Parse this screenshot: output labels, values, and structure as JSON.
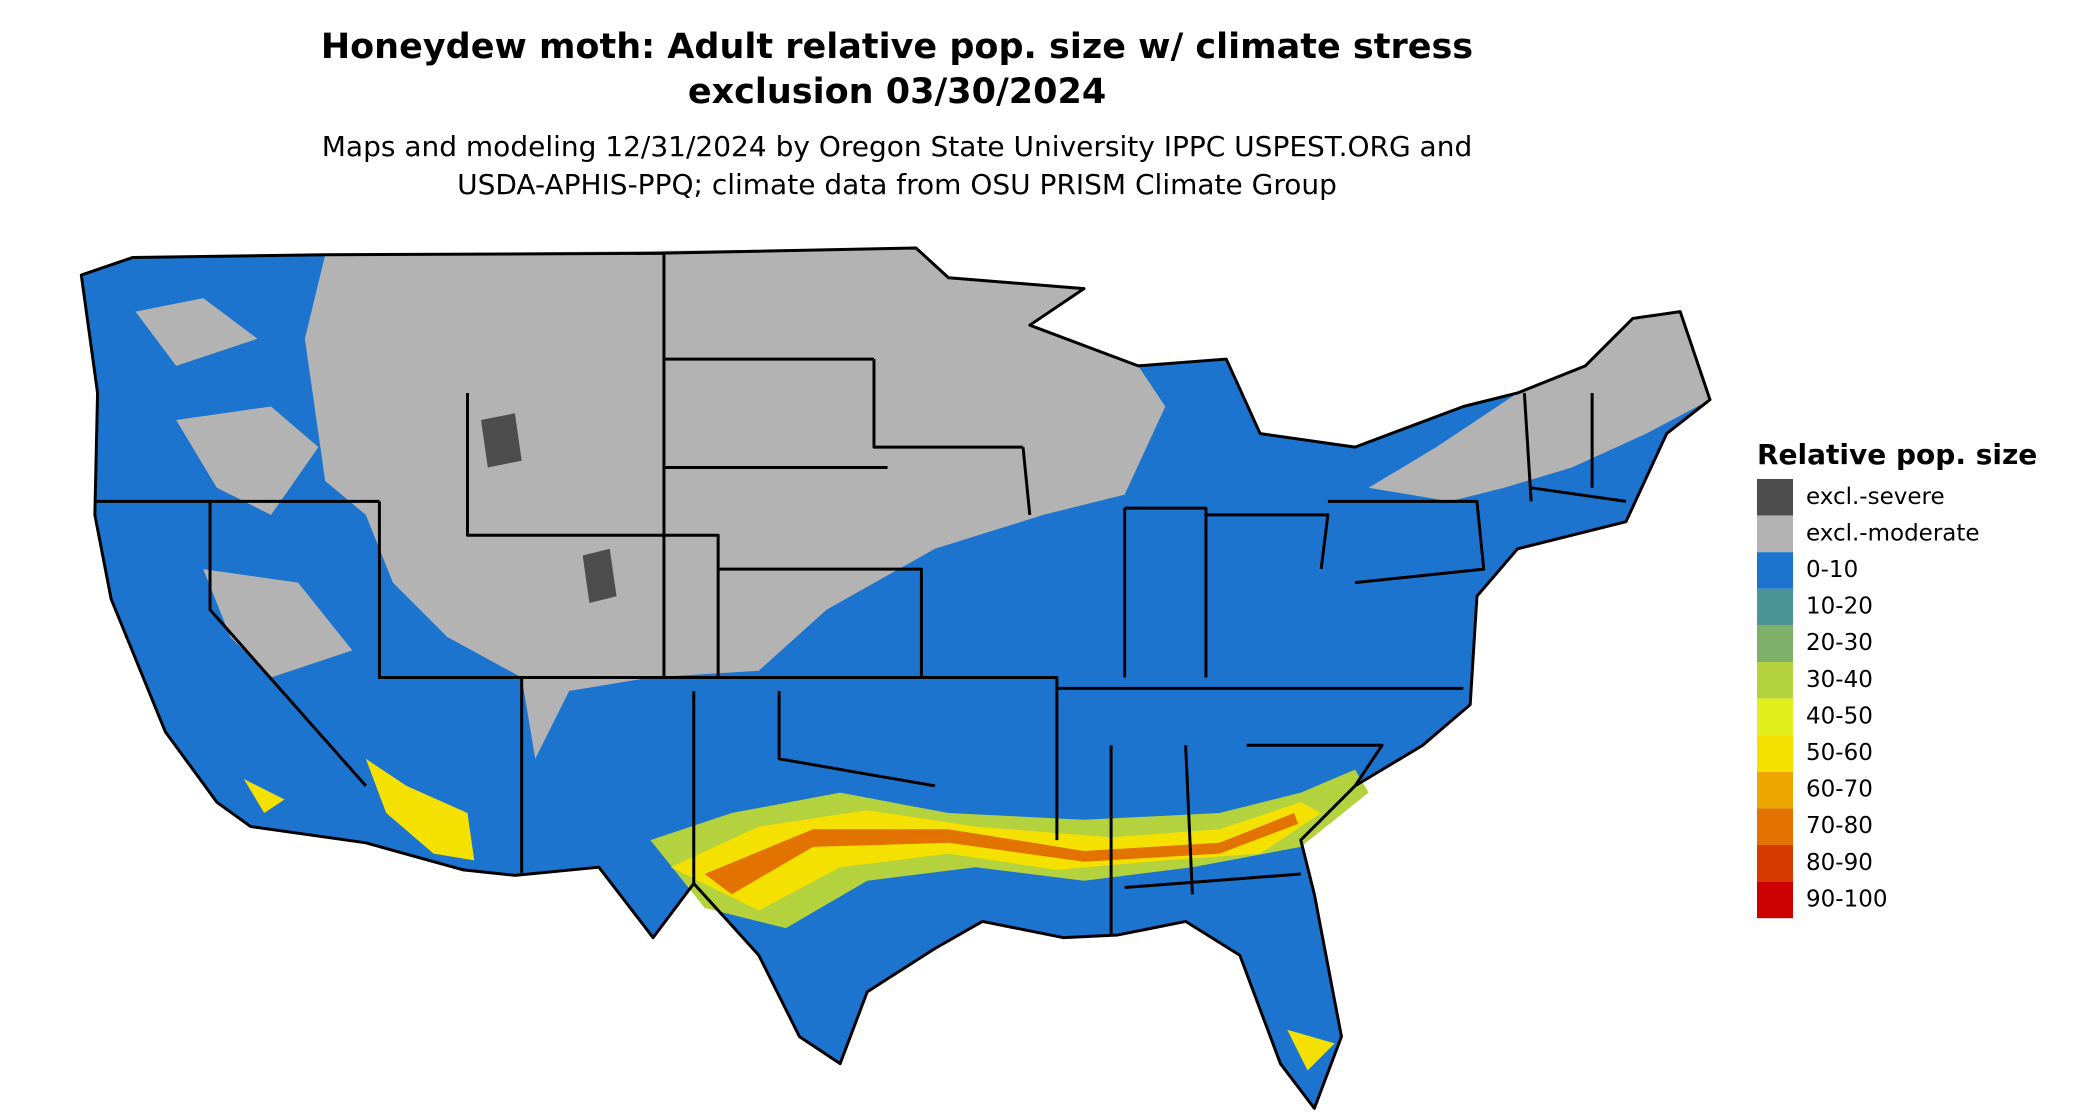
{
  "header": {
    "title": [
      "Honeydew moth: Adult relative pop. size w/ climate stress",
      "exclusion 03/30/2024"
    ],
    "subtitle": [
      "Maps and modeling 12/31/2024 by Oregon State University IPPC USPEST.ORG and",
      "USDA-APHIS-PPQ; climate data from OSU PRISM Climate Group"
    ]
  },
  "legend": {
    "title": "Relative pop. size",
    "items": [
      {
        "label": "excl.-severe",
        "color": "#4d4d4d"
      },
      {
        "label": "excl.-moderate",
        "color": "#b3b3b3"
      },
      {
        "label": "0-10",
        "color": "#1c74cf"
      },
      {
        "label": "10-20",
        "color": "#4a9396"
      },
      {
        "label": "20-30",
        "color": "#7fb069"
      },
      {
        "label": "30-40",
        "color": "#b4d13e"
      },
      {
        "label": "40-50",
        "color": "#e2ef1b"
      },
      {
        "label": "50-60",
        "color": "#f5e100"
      },
      {
        "label": "60-70",
        "color": "#eda800"
      },
      {
        "label": "70-80",
        "color": "#e27300"
      },
      {
        "label": "80-90",
        "color": "#d63c00"
      },
      {
        "label": "90-100",
        "color": "#cc0000"
      }
    ]
  }
}
